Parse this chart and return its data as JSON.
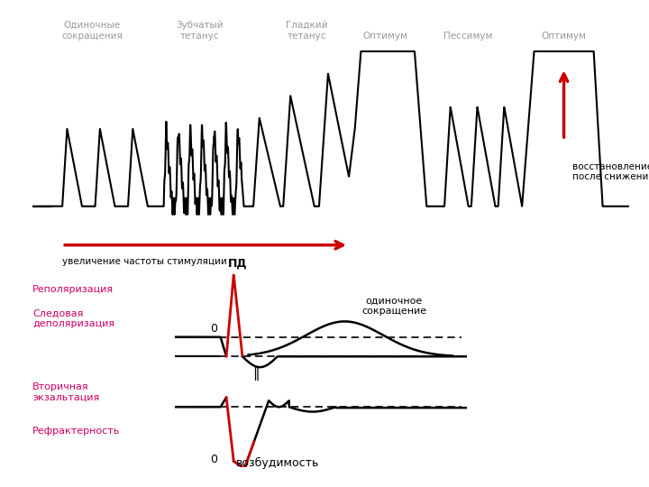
{
  "title_single": "Одиночные\nсокращения",
  "title_serrated": "Зубчатый\nтетанус",
  "title_smooth": "Гладкий\nтетанус",
  "title_opt1": "Оптимум",
  "title_pess": "Пессимум",
  "title_opt2": "Оптимум",
  "arrow_text": "увеличение частоты стимуляции",
  "recovery_text": "восстановление оптимума\nпосле снижения частоты",
  "pd_text": "ПД",
  "zero1_text": "0",
  "zero2_text": "0",
  "repol_text": "Реполяризация",
  "sledov_text": "Следовая\nдеполяризация",
  "vtoric_text": "Вторичная\nэкзальтация",
  "refrak_text": "Рефрактерность",
  "vozbud_text": "возбудимость",
  "odinoch_text": "одиночное\nсокращение",
  "bg": "#ffffff",
  "black": "#000000",
  "red": "#cc0000",
  "pink": "#cc0066",
  "gray": "#999999"
}
